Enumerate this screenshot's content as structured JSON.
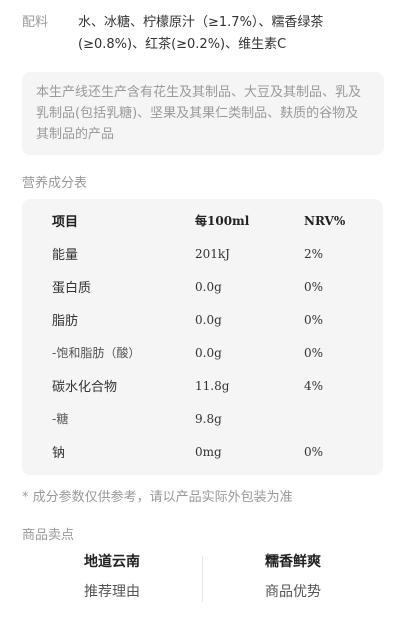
{
  "ingredients": {
    "label": "配料",
    "value": "水、冰糖、柠檬原汁（≥1.7%）、糯香绿茶(≥0.8%)、红茶(≥0.2%)、维生素C"
  },
  "allergen_notice": "本生产线还生产含有花生及其制品、大豆及其制品、乳及乳制品(包括乳糖)、坚果及其果仁类制品、麸质的谷物及其制品的产品",
  "nutrition": {
    "title": "营养成分表",
    "headers": [
      "项目",
      "每100ml",
      "NRV%"
    ],
    "rows": [
      {
        "item": "能量",
        "per100": "201kJ",
        "nrv": "2%"
      },
      {
        "item": "蛋白质",
        "per100": "0.0g",
        "nrv": "0%"
      },
      {
        "item": "脂肪",
        "per100": "0.0g",
        "nrv": "0%"
      },
      {
        "item": "-饱和脂肪（酸）",
        "per100": "0.0g",
        "nrv": "0%"
      },
      {
        "item": "碳水化合物",
        "per100": "11.8g",
        "nrv": "4%"
      },
      {
        "item": "-糖",
        "per100": "9.8g",
        "nrv": ""
      },
      {
        "item": "钠",
        "per100": "0mg",
        "nrv": "0%"
      }
    ],
    "note": "* 成分参数仅供参考，请以产品实际外包装为准"
  },
  "selling_points": {
    "title": "商品卖点",
    "items": [
      {
        "title": "地道云南",
        "subtitle": "推荐理由"
      },
      {
        "title": "糯香鲜爽",
        "subtitle": "商品优势"
      }
    ]
  }
}
